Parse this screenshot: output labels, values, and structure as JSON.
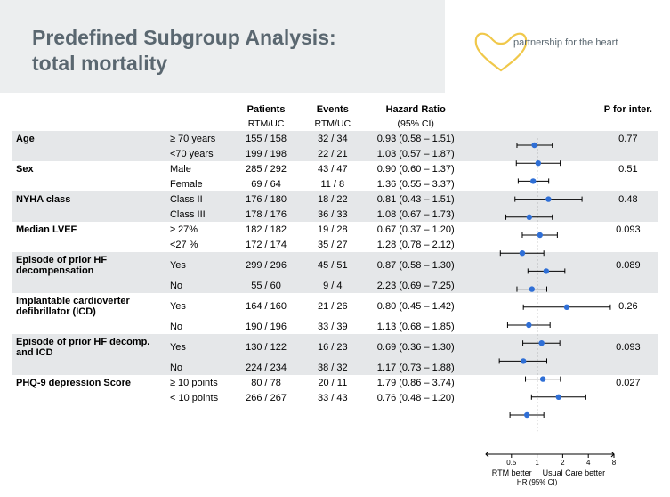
{
  "title_line1": "Predefined Subgroup Analysis:",
  "title_line2": "total mortality",
  "logo_text": "partnership for the heart",
  "headers": {
    "patients": "Patients",
    "patients_sub": "RTM/UC",
    "events": "Events",
    "events_sub": "RTM/UC",
    "hr": "Hazard Ratio",
    "hr_sub": "(95% CI)",
    "p": "P for inter."
  },
  "forest": {
    "ref_line_x": 78,
    "log_min": 0.25,
    "log_max": 8,
    "xticks": [
      0.5,
      1,
      2,
      4,
      8
    ],
    "xtick_labels": [
      "0.5",
      "1",
      "2",
      "4",
      "8"
    ],
    "point_color": "#2f6fd6",
    "line_color": "#000000",
    "ref_line_color": "#000000",
    "axis_left_label": "RTM better",
    "axis_right_label": "Usual Care better",
    "axis_bottom_label": "HR (95% CI)"
  },
  "rows": [
    {
      "label": "Age",
      "red": false,
      "level": "≥ 70 years",
      "patients": "155 / 158",
      "events": "32 / 34",
      "hr": "0.93 (0.58 – 1.51)",
      "p": "0.77",
      "point": 0.93,
      "lo": 0.58,
      "hi": 1.51,
      "stripe": true,
      "showLabel": true,
      "showP": true
    },
    {
      "label": "",
      "red": false,
      "level": "<70 years",
      "patients": "199 / 198",
      "events": "22 / 21",
      "hr": "1.03 (0.57 – 1.87)",
      "p": "",
      "point": 1.03,
      "lo": 0.57,
      "hi": 1.87,
      "stripe": true,
      "showLabel": false,
      "showP": false
    },
    {
      "label": "Sex",
      "red": false,
      "level": "Male",
      "patients": "285 / 292",
      "events": "43 / 47",
      "hr": "0.90 (0.60 – 1.37)",
      "p": "0.51",
      "point": 0.9,
      "lo": 0.6,
      "hi": 1.37,
      "stripe": false,
      "showLabel": true,
      "showP": true
    },
    {
      "label": "",
      "red": false,
      "level": "Female",
      "patients": "69 / 64",
      "events": "11 / 8",
      "hr": "1.36 (0.55 – 3.37)",
      "p": "",
      "point": 1.36,
      "lo": 0.55,
      "hi": 3.37,
      "stripe": false,
      "showLabel": false,
      "showP": false
    },
    {
      "label": "NYHA class",
      "red": true,
      "level": "Class II",
      "patients": "176 / 180",
      "events": "18 / 22",
      "hr": "0.81 (0.43 – 1.51)",
      "p": "0.48",
      "point": 0.81,
      "lo": 0.43,
      "hi": 1.51,
      "stripe": true,
      "showLabel": true,
      "showP": true
    },
    {
      "label": "",
      "red": true,
      "level": "Class III",
      "patients": "178 / 176",
      "events": "36 / 33",
      "hr": "1.08 (0.67 – 1.73)",
      "p": "",
      "point": 1.08,
      "lo": 0.67,
      "hi": 1.73,
      "stripe": true,
      "showLabel": false,
      "showP": false
    },
    {
      "label": "Median LVEF",
      "red": true,
      "level": "≥ 27%",
      "patients": "182 / 182",
      "events": "19 / 28",
      "hr": "0.67 (0.37 – 1.20)",
      "p": "0.093",
      "point": 0.67,
      "lo": 0.37,
      "hi": 1.2,
      "stripe": false,
      "showLabel": true,
      "showP": true
    },
    {
      "label": "",
      "red": true,
      "level": "<27 %",
      "patients": "172 / 174",
      "events": "35 / 27",
      "hr": "1.28 (0.78 – 2.12)",
      "p": "",
      "point": 1.28,
      "lo": 0.78,
      "hi": 2.12,
      "stripe": false,
      "showLabel": false,
      "showP": false
    },
    {
      "label": "Episode of prior HF decompensation",
      "red": true,
      "level": "Yes",
      "patients": "299 / 296",
      "events": "45 / 51",
      "hr": "0.87 (0.58 – 1.30)",
      "p": "0.089",
      "point": 0.87,
      "lo": 0.58,
      "hi": 1.3,
      "stripe": true,
      "showLabel": true,
      "showP": true
    },
    {
      "label": "",
      "red": true,
      "level": "No",
      "patients": "55 / 60",
      "events": "9 / 4",
      "hr": "2.23 (0.69 – 7.25)",
      "p": "",
      "point": 2.23,
      "lo": 0.69,
      "hi": 7.25,
      "stripe": true,
      "showLabel": false,
      "showP": false
    },
    {
      "label": "Implantable cardioverter defibrillator (ICD)",
      "red": false,
      "level": "Yes",
      "patients": "164 / 160",
      "events": "21 / 26",
      "hr": "0.80 (0.45 – 1.42)",
      "p": "0.26",
      "point": 0.8,
      "lo": 0.45,
      "hi": 1.42,
      "stripe": false,
      "showLabel": true,
      "showP": true
    },
    {
      "label": "",
      "red": false,
      "level": "No",
      "patients": "190 / 196",
      "events": "33 / 39",
      "hr": "1.13 (0.68 – 1.85)",
      "p": "",
      "point": 1.13,
      "lo": 0.68,
      "hi": 1.85,
      "stripe": false,
      "showLabel": false,
      "showP": false
    },
    {
      "label": "Episode of prior HF decomp. and ICD",
      "red": false,
      "level": "Yes",
      "patients": "130 / 122",
      "events": "16 / 23",
      "hr": "0.69 (0.36 – 1.30)",
      "p": "0.093",
      "point": 0.69,
      "lo": 0.36,
      "hi": 1.3,
      "stripe": true,
      "showLabel": true,
      "showP": true
    },
    {
      "label": "",
      "red": false,
      "level": "No",
      "patients": "224 / 234",
      "events": "38 / 32",
      "hr": "1.17 (0.73 – 1.88)",
      "p": "",
      "point": 1.17,
      "lo": 0.73,
      "hi": 1.88,
      "stripe": true,
      "showLabel": false,
      "showP": false
    },
    {
      "label": "PHQ-9 depression Score",
      "red": true,
      "level": "≥ 10 points",
      "patients": "80 / 78",
      "events": "20 / 11",
      "hr": "1.79 (0.86 – 3.74)",
      "p": "0.027",
      "point": 1.79,
      "lo": 0.86,
      "hi": 3.74,
      "stripe": false,
      "showLabel": true,
      "showP": true
    },
    {
      "label": "",
      "red": true,
      "level": "< 10 points",
      "patients": "266 / 267",
      "events": "33 / 43",
      "hr": "0.76 (0.48 – 1.20)",
      "p": "",
      "point": 0.76,
      "lo": 0.48,
      "hi": 1.2,
      "stripe": false,
      "showLabel": false,
      "showP": false
    }
  ]
}
